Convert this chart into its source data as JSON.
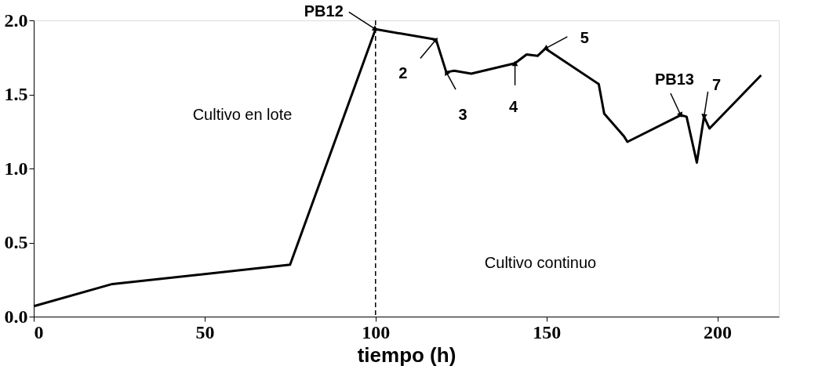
{
  "chart_data": {
    "type": "line",
    "xlabel": "tiempo (h)",
    "xlim": [
      0,
      218
    ],
    "xticks": [
      0,
      50,
      100,
      150,
      200
    ],
    "ylim": [
      0,
      2
    ],
    "yticks": [
      {
        "value": 0,
        "label": "0.0"
      },
      {
        "value": 0.5,
        "label": "0.5"
      },
      {
        "value": 1,
        "label": "1.0"
      },
      {
        "value": 1.5,
        "label": "1.5"
      },
      {
        "value": 2,
        "label": "2.0"
      }
    ],
    "grid": false,
    "marker": "none",
    "line_style": "solid",
    "series": [
      {
        "color": "#000000",
        "x": [
          0,
          23,
          75,
          100,
          117.7,
          120.7,
          123,
          128,
          140.8,
          144.2,
          147.4,
          149.7,
          165.3,
          166.9,
          172.6,
          173.7,
          189.3,
          191,
          194,
          196.1,
          197.7,
          212.8
        ],
        "values": [
          0.07,
          0.22,
          0.35,
          1.94,
          1.87,
          1.65,
          1.66,
          1.64,
          1.71,
          1.77,
          1.76,
          1.81,
          1.57,
          1.37,
          1.22,
          1.18,
          1.36,
          1.35,
          1.04,
          1.35,
          1.27,
          1.63
        ]
      }
    ],
    "ref_lines": [
      {
        "axis": "x",
        "value": 100,
        "line_style": "dashed",
        "color": "#000000"
      }
    ],
    "annotations": [
      {
        "text": "PB12",
        "x": 100,
        "y": 1.94
      },
      {
        "text": "2",
        "x": 117.7,
        "y": 1.87
      },
      {
        "text": "3",
        "x": 120.7,
        "y": 1.65
      },
      {
        "text": "4",
        "x": 140.8,
        "y": 1.71
      },
      {
        "text": "5",
        "x": 149.7,
        "y": 1.81
      },
      {
        "text": "PB13",
        "x": 189.3,
        "y": 1.36
      },
      {
        "text": "7",
        "x": 196.1,
        "y": 1.35
      },
      "Cultivo en lote",
      "Cultivo continuo"
    ]
  }
}
